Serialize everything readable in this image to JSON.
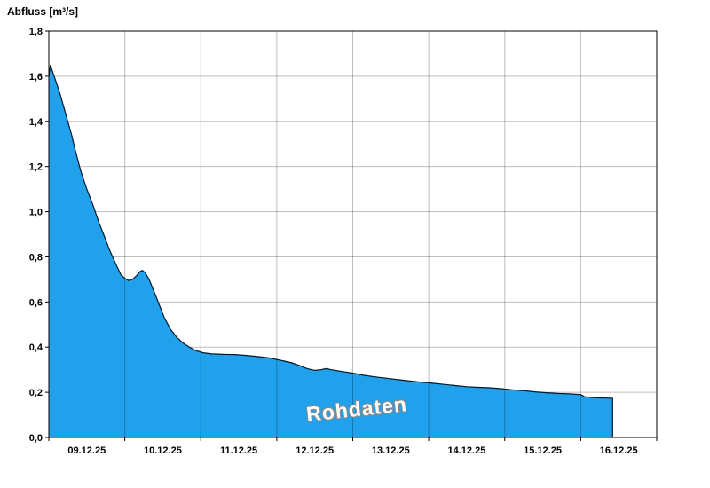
{
  "chart_data": {
    "type": "area",
    "title": "Abfluss [m³/s]",
    "watermark": "Rohdaten",
    "ylim": [
      0,
      1.8
    ],
    "ytick_step": 0.2,
    "ytick_labels": [
      "0,0",
      "0,2",
      "0,4",
      "0,6",
      "0,8",
      "1,0",
      "1,2",
      "1,4",
      "1,6",
      "1,8"
    ],
    "xlim_days": [
      0,
      8
    ],
    "x_day_labels": [
      "09.12.25",
      "10.12.25",
      "11.12.25",
      "12.12.25",
      "13.12.25",
      "14.12.25",
      "15.12.25",
      "16.12.25"
    ],
    "grid": true,
    "legend": "none",
    "colors": {
      "fill": "#21a0ec",
      "line": "#001828",
      "grid": "rgba(0,0,0,0.25)",
      "frame": "#000000",
      "text": "#000000"
    },
    "series": [
      {
        "name": "Abfluss Rohdaten",
        "unit": "m³/s",
        "points": [
          [
            0.0,
            1.6
          ],
          [
            0.02,
            1.65
          ],
          [
            0.05,
            1.62
          ],
          [
            0.1,
            1.57
          ],
          [
            0.15,
            1.52
          ],
          [
            0.2,
            1.46
          ],
          [
            0.25,
            1.4
          ],
          [
            0.3,
            1.34
          ],
          [
            0.35,
            1.27
          ],
          [
            0.42,
            1.18
          ],
          [
            0.5,
            1.1
          ],
          [
            0.58,
            1.03
          ],
          [
            0.65,
            0.96
          ],
          [
            0.72,
            0.9
          ],
          [
            0.8,
            0.83
          ],
          [
            0.88,
            0.77
          ],
          [
            0.95,
            0.72
          ],
          [
            1.0,
            0.705
          ],
          [
            1.05,
            0.695
          ],
          [
            1.1,
            0.7
          ],
          [
            1.15,
            0.715
          ],
          [
            1.2,
            0.735
          ],
          [
            1.23,
            0.74
          ],
          [
            1.27,
            0.73
          ],
          [
            1.32,
            0.7
          ],
          [
            1.38,
            0.65
          ],
          [
            1.45,
            0.59
          ],
          [
            1.52,
            0.53
          ],
          [
            1.6,
            0.48
          ],
          [
            1.68,
            0.445
          ],
          [
            1.76,
            0.42
          ],
          [
            1.85,
            0.4
          ],
          [
            1.93,
            0.385
          ],
          [
            2.03,
            0.375
          ],
          [
            2.15,
            0.37
          ],
          [
            2.3,
            0.368
          ],
          [
            2.45,
            0.367
          ],
          [
            2.6,
            0.363
          ],
          [
            2.75,
            0.358
          ],
          [
            2.9,
            0.352
          ],
          [
            3.0,
            0.345
          ],
          [
            3.1,
            0.338
          ],
          [
            3.2,
            0.33
          ],
          [
            3.3,
            0.318
          ],
          [
            3.4,
            0.305
          ],
          [
            3.5,
            0.297
          ],
          [
            3.58,
            0.3
          ],
          [
            3.65,
            0.305
          ],
          [
            3.72,
            0.3
          ],
          [
            3.8,
            0.295
          ],
          [
            3.9,
            0.29
          ],
          [
            4.0,
            0.285
          ],
          [
            4.15,
            0.275
          ],
          [
            4.3,
            0.268
          ],
          [
            4.45,
            0.262
          ],
          [
            4.6,
            0.256
          ],
          [
            4.75,
            0.25
          ],
          [
            4.9,
            0.245
          ],
          [
            5.05,
            0.24
          ],
          [
            5.2,
            0.235
          ],
          [
            5.35,
            0.23
          ],
          [
            5.5,
            0.225
          ],
          [
            5.65,
            0.222
          ],
          [
            5.8,
            0.22
          ],
          [
            5.95,
            0.216
          ],
          [
            6.1,
            0.211
          ],
          [
            6.25,
            0.207
          ],
          [
            6.4,
            0.202
          ],
          [
            6.55,
            0.198
          ],
          [
            6.7,
            0.195
          ],
          [
            6.85,
            0.193
          ],
          [
            7.0,
            0.19
          ],
          [
            7.05,
            0.18
          ],
          [
            7.15,
            0.177
          ],
          [
            7.25,
            0.175
          ],
          [
            7.35,
            0.174
          ],
          [
            7.42,
            0.173
          ]
        ]
      }
    ]
  }
}
